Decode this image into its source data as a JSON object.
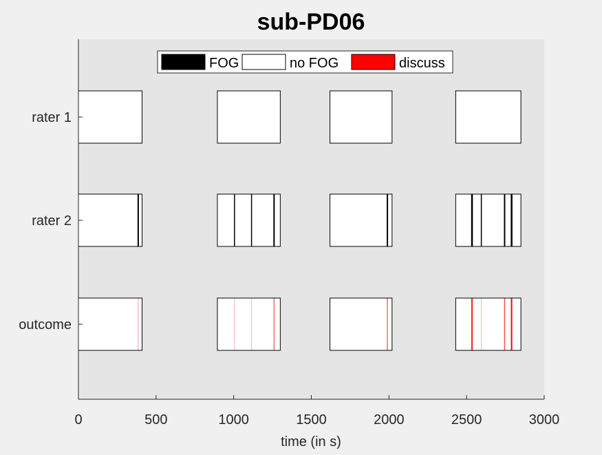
{
  "chart_data": {
    "type": "table",
    "title": "sub-PD06",
    "xlabel": "time (in s)",
    "ylabel": "",
    "xlim": [
      0,
      3000
    ],
    "xticks": [
      0,
      500,
      1000,
      1500,
      2000,
      2500,
      3000
    ],
    "rows": [
      "rater 1",
      "rater 2",
      "outcome"
    ],
    "legend": {
      "placement": "top-center",
      "entries": [
        {
          "label": "FOG",
          "color": "#000000"
        },
        {
          "label": "no FOG",
          "color": "#ffffff"
        },
        {
          "label": "discuss",
          "color": "#ff0000"
        }
      ]
    },
    "segments": [
      {
        "start": 0,
        "end": 410
      },
      {
        "start": 895,
        "end": 1300
      },
      {
        "start": 1620,
        "end": 2020
      },
      {
        "start": 2430,
        "end": 2850
      }
    ],
    "events": {
      "rater 1": [],
      "rater 2": [
        {
          "time": 385,
          "kind": "FOG",
          "weight": 2
        },
        {
          "time": 1005,
          "kind": "FOG",
          "weight": 1.5
        },
        {
          "time": 1115,
          "kind": "FOG",
          "weight": 1.5
        },
        {
          "time": 1260,
          "kind": "FOG",
          "weight": 2
        },
        {
          "time": 1990,
          "kind": "FOG",
          "weight": 2
        },
        {
          "time": 2535,
          "kind": "FOG",
          "weight": 2.5
        },
        {
          "time": 2595,
          "kind": "FOG",
          "weight": 1.5
        },
        {
          "time": 2745,
          "kind": "FOG",
          "weight": 2
        },
        {
          "time": 2790,
          "kind": "FOG",
          "weight": 2.5
        }
      ],
      "outcome": [
        {
          "time": 385,
          "kind": "discuss",
          "weight": 1,
          "opacity": 0.4
        },
        {
          "time": 1005,
          "kind": "discuss",
          "weight": 1,
          "opacity": 0.3
        },
        {
          "time": 1115,
          "kind": "discuss",
          "weight": 1,
          "opacity": 0.3
        },
        {
          "time": 1260,
          "kind": "discuss",
          "weight": 1.5,
          "opacity": 0.6
        },
        {
          "time": 1990,
          "kind": "discuss",
          "weight": 1.5,
          "opacity": 0.6
        },
        {
          "time": 2535,
          "kind": "discuss",
          "weight": 2,
          "opacity": 0.9
        },
        {
          "time": 2595,
          "kind": "discuss",
          "weight": 1,
          "opacity": 0.3
        },
        {
          "time": 2745,
          "kind": "discuss",
          "weight": 1.5,
          "opacity": 0.7
        },
        {
          "time": 2790,
          "kind": "discuss",
          "weight": 2,
          "opacity": 1
        }
      ]
    },
    "colors": {
      "figure_background": "#f0f0f0",
      "axes_background": "#e5e5e5",
      "axis_line": "#262626",
      "box_fill": "#ffffff",
      "box_edge": "#000000",
      "FOG": "#000000",
      "discuss": "#ff0000"
    }
  }
}
